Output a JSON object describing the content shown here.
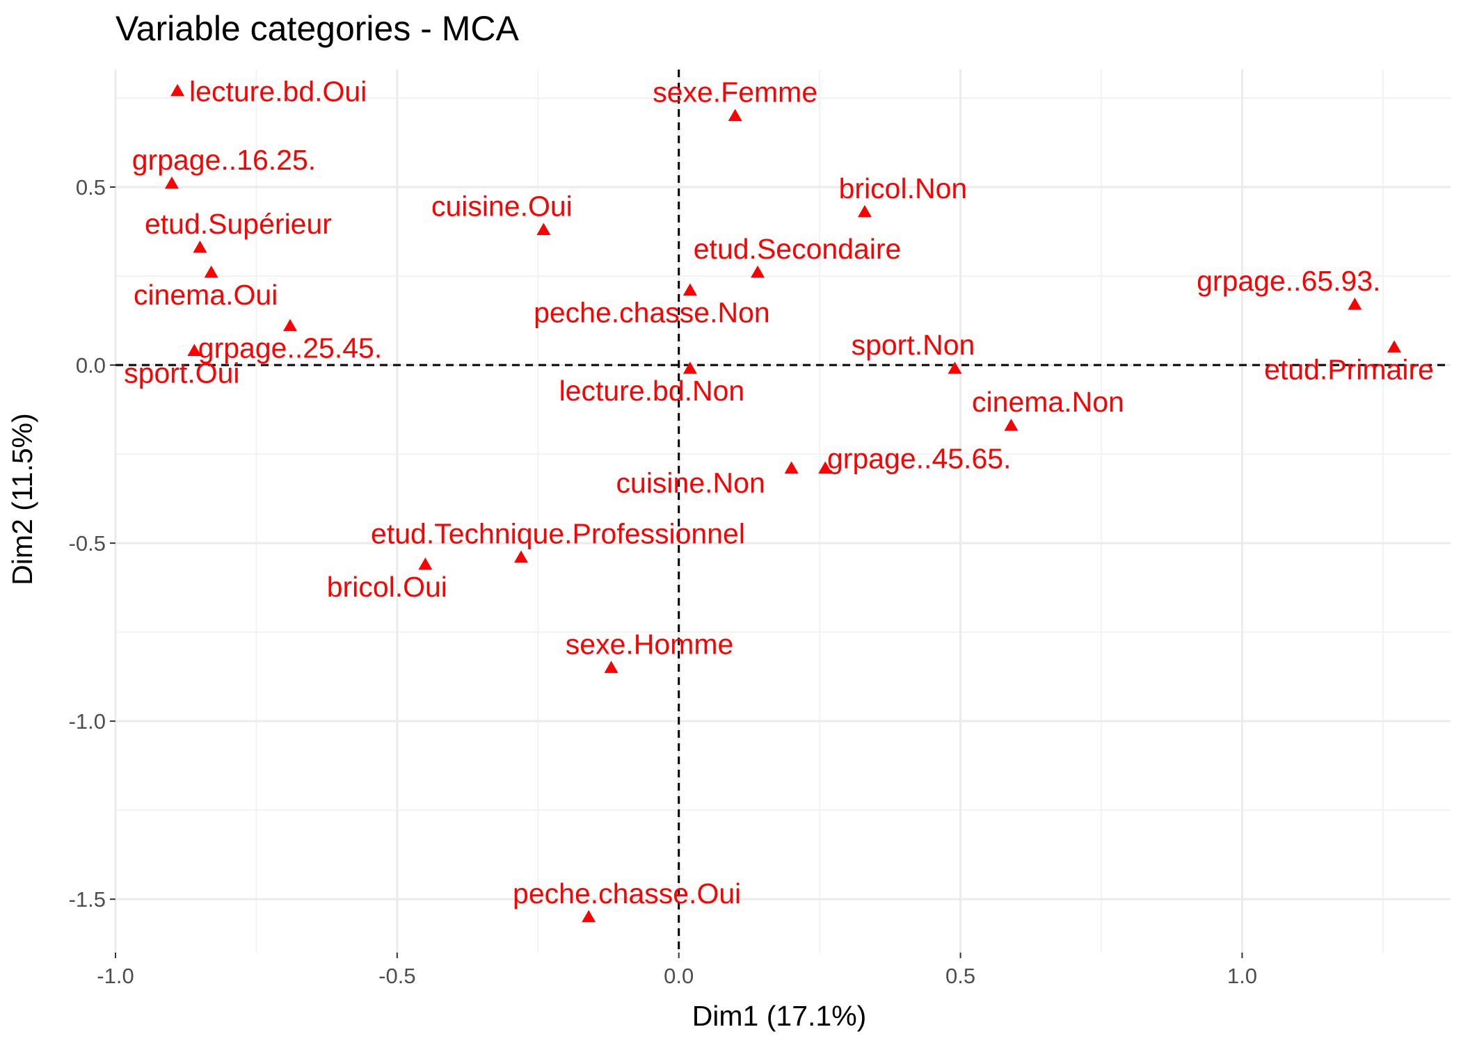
{
  "chart_data": {
    "type": "scatter",
    "title": "Variable categories - MCA",
    "xlabel": "Dim1 (17.1%)",
    "ylabel": "Dim2 (11.5%)",
    "xlim": [
      -1.0,
      1.37
    ],
    "ylim": [
      -1.65,
      0.83
    ],
    "xticks": [
      -1.0,
      -0.5,
      0.0,
      0.5,
      1.0
    ],
    "xtick_labels": [
      "-1.0",
      "-0.5",
      "0.0",
      "0.5",
      "1.0"
    ],
    "yticks": [
      0.5,
      0.0,
      -0.5,
      -1.0,
      -1.5
    ],
    "ytick_labels": [
      "0.5",
      "0.0",
      "-0.5",
      "-1.0",
      "-1.5"
    ],
    "grid": true,
    "reference_lines": {
      "x": 0,
      "y": 0,
      "style": "dashed"
    },
    "marker": "triangle",
    "point_color": "#ff0000",
    "points": [
      {
        "label": "lecture.bd.Oui",
        "x": -0.89,
        "y": 0.77
      },
      {
        "label": "sexe.Femme",
        "x": 0.1,
        "y": 0.7
      },
      {
        "label": "grpage..16.25.",
        "x": -0.9,
        "y": 0.51
      },
      {
        "label": "bricol.Non",
        "x": 0.33,
        "y": 0.43
      },
      {
        "label": "cuisine.Oui",
        "x": -0.24,
        "y": 0.38
      },
      {
        "label": "etud.Supérieur",
        "x": -0.85,
        "y": 0.33
      },
      {
        "label": "etud.Secondaire",
        "x": 0.14,
        "y": 0.26
      },
      {
        "label": "cinema.Oui",
        "x": -0.83,
        "y": 0.26
      },
      {
        "label": "grpage..65.93.",
        "x": 1.2,
        "y": 0.17
      },
      {
        "label": "peche.chasse.Non",
        "x": 0.02,
        "y": 0.21
      },
      {
        "label": "grpage..25.45.",
        "x": -0.69,
        "y": 0.11
      },
      {
        "label": "sport.Non",
        "x": 0.49,
        "y": -0.01
      },
      {
        "label": "etud.Primaire",
        "x": 1.27,
        "y": 0.05
      },
      {
        "label": "sport.Oui",
        "x": -0.86,
        "y": 0.04
      },
      {
        "label": "lecture.bd.Non",
        "x": 0.02,
        "y": -0.01
      },
      {
        "label": "cinema.Non",
        "x": 0.59,
        "y": -0.17
      },
      {
        "label": "grpage..45.65.",
        "x": 0.26,
        "y": -0.29
      },
      {
        "label": "cuisine.Non",
        "x": 0.2,
        "y": -0.29
      },
      {
        "label": "etud.Technique.Professionnel",
        "x": -0.28,
        "y": -0.54
      },
      {
        "label": "bricol.Oui",
        "x": -0.45,
        "y": -0.56
      },
      {
        "label": "sexe.Homme",
        "x": -0.12,
        "y": -0.85
      },
      {
        "label": "peche.chasse.Oui",
        "x": -0.16,
        "y": -1.55
      }
    ]
  }
}
